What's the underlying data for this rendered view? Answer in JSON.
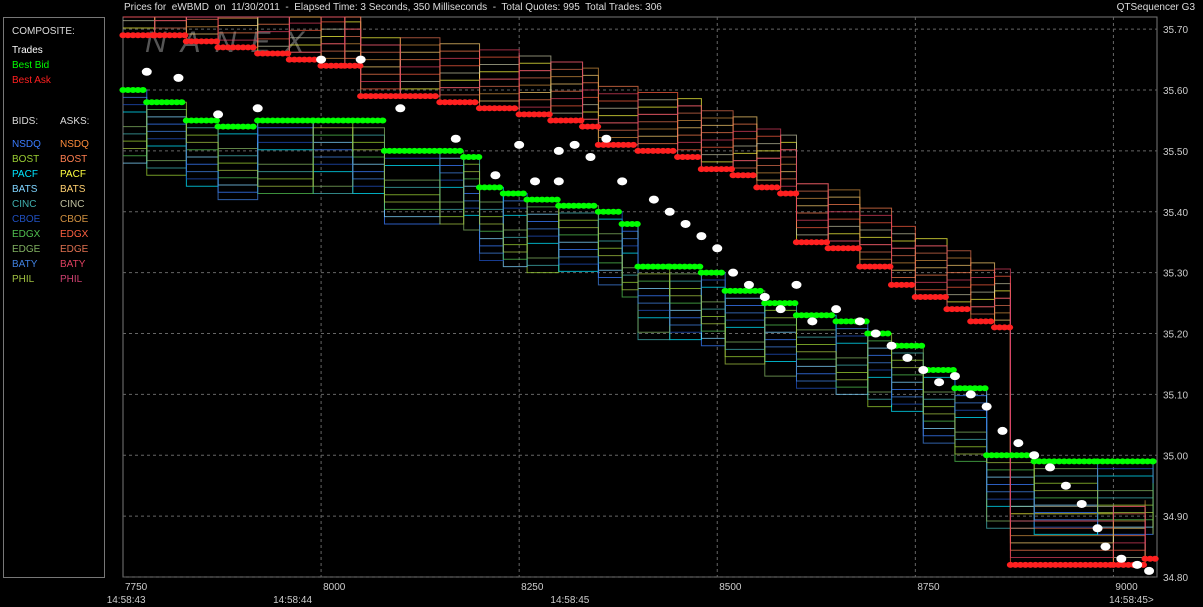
{
  "title": {
    "left": "Prices for  eWBMD  on  11/30/2011  -  Elapsed Time: 3 Seconds, 350 Milliseconds  -  Total Quotes: 995  Total Trades: 306",
    "right": "QTSequencer G3"
  },
  "watermark": "NANEX",
  "legend": {
    "composite_header": "COMPOSITE:",
    "composite": [
      {
        "label": "Trades",
        "color": "#ffffff"
      },
      {
        "label": "Best Bid",
        "color": "#00ff00"
      },
      {
        "label": "Best Ask",
        "color": "#ff2020"
      }
    ],
    "bids_header": "BIDS:",
    "asks_header": "ASKS:",
    "exchanges": [
      {
        "bid": "NSDQ",
        "bid_color": "#3a7cff",
        "ask": "NSDQ",
        "ask_color": "#ff8c3a"
      },
      {
        "bid": "BOST",
        "bid_color": "#9acd32",
        "ask": "BOST",
        "ask_color": "#ff7f50"
      },
      {
        "bid": "PACF",
        "bid_color": "#00e5ff",
        "ask": "PACF",
        "ask_color": "#ffff40"
      },
      {
        "bid": "BATS",
        "bid_color": "#7fd4ff",
        "ask": "BATS",
        "ask_color": "#ffd070"
      },
      {
        "bid": "CINC",
        "bid_color": "#40b0b0",
        "ask": "CINC",
        "ask_color": "#c0c0a0"
      },
      {
        "bid": "CBOE",
        "bid_color": "#2050c0",
        "ask": "CBOE",
        "ask_color": "#d09040"
      },
      {
        "bid": "EDGX",
        "bid_color": "#50c050",
        "ask": "EDGX",
        "ask_color": "#ff6040"
      },
      {
        "bid": "EDGE",
        "bid_color": "#80b060",
        "ask": "EDGE",
        "ask_color": "#e07050"
      },
      {
        "bid": "BATY",
        "bid_color": "#4080e0",
        "ask": "BATY",
        "ask_color": "#e04060"
      },
      {
        "bid": "PHIL",
        "bid_color": "#a0c040",
        "ask": "PHIL",
        "ask_color": "#d04070"
      }
    ]
  },
  "chart_data": {
    "type": "scatter",
    "title": "Prices for eWBMD on 11/30/2011",
    "xlim": [
      7750,
      9055
    ],
    "ylim": [
      34.8,
      35.72
    ],
    "x_ticks": [
      7750,
      8000,
      8250,
      8500,
      8750,
      9000
    ],
    "y_ticks": [
      34.8,
      34.9,
      35.0,
      35.1,
      35.2,
      35.3,
      35.4,
      35.5,
      35.6,
      35.7
    ],
    "y_tick_labels": [
      "34.80",
      "34.90",
      "35.00",
      "35.10",
      "35.20",
      "35.30",
      "35.40",
      "35.50",
      "35.60",
      "35.70"
    ],
    "time_labels": [
      {
        "x": 7790,
        "label": "14:58:43"
      },
      {
        "x": 8000,
        "label": "14:58:44"
      },
      {
        "x": 8350,
        "label": "14:58:45"
      },
      {
        "x": 9055,
        "label": "14:58:45>"
      }
    ],
    "grid": true,
    "series": [
      {
        "name": "Best Ask",
        "color": "#ff2020",
        "points": [
          [
            7750,
            35.69
          ],
          [
            7790,
            35.69
          ],
          [
            7830,
            35.68
          ],
          [
            7870,
            35.67
          ],
          [
            7920,
            35.66
          ],
          [
            7960,
            35.65
          ],
          [
            8000,
            35.64
          ],
          [
            8030,
            35.64
          ],
          [
            8050,
            35.59
          ],
          [
            8100,
            35.59
          ],
          [
            8150,
            35.58
          ],
          [
            8200,
            35.57
          ],
          [
            8250,
            35.56
          ],
          [
            8290,
            35.55
          ],
          [
            8330,
            35.54
          ],
          [
            8350,
            35.51
          ],
          [
            8400,
            35.5
          ],
          [
            8450,
            35.49
          ],
          [
            8480,
            35.47
          ],
          [
            8520,
            35.46
          ],
          [
            8550,
            35.44
          ],
          [
            8580,
            35.43
          ],
          [
            8600,
            35.35
          ],
          [
            8640,
            35.34
          ],
          [
            8680,
            35.31
          ],
          [
            8720,
            35.28
          ],
          [
            8750,
            35.26
          ],
          [
            8790,
            35.24
          ],
          [
            8820,
            35.22
          ],
          [
            8850,
            35.21
          ],
          [
            8870,
            34.82
          ],
          [
            9000,
            34.82
          ],
          [
            9040,
            34.83
          ]
        ]
      },
      {
        "name": "Best Bid",
        "color": "#00ff00",
        "points": [
          [
            7750,
            35.6
          ],
          [
            7780,
            35.58
          ],
          [
            7830,
            35.55
          ],
          [
            7870,
            35.54
          ],
          [
            7920,
            35.55
          ],
          [
            7990,
            35.55
          ],
          [
            8040,
            35.55
          ],
          [
            8080,
            35.5
          ],
          [
            8150,
            35.5
          ],
          [
            8180,
            35.49
          ],
          [
            8200,
            35.44
          ],
          [
            8230,
            35.43
          ],
          [
            8260,
            35.42
          ],
          [
            8300,
            35.41
          ],
          [
            8350,
            35.4
          ],
          [
            8380,
            35.38
          ],
          [
            8400,
            35.31
          ],
          [
            8440,
            35.31
          ],
          [
            8480,
            35.3
          ],
          [
            8510,
            35.27
          ],
          [
            8560,
            35.25
          ],
          [
            8600,
            35.23
          ],
          [
            8650,
            35.22
          ],
          [
            8690,
            35.2
          ],
          [
            8720,
            35.18
          ],
          [
            8760,
            35.14
          ],
          [
            8800,
            35.11
          ],
          [
            8840,
            35.0
          ],
          [
            8900,
            34.99
          ],
          [
            8980,
            34.99
          ],
          [
            9050,
            34.99
          ]
        ]
      },
      {
        "name": "Trades",
        "color": "#ffffff",
        "points": [
          [
            7780,
            35.63
          ],
          [
            7820,
            35.62
          ],
          [
            7870,
            35.56
          ],
          [
            7920,
            35.57
          ],
          [
            8000,
            35.65
          ],
          [
            8050,
            35.65
          ],
          [
            8100,
            35.57
          ],
          [
            8170,
            35.52
          ],
          [
            8250,
            35.51
          ],
          [
            8300,
            35.5
          ],
          [
            8320,
            35.51
          ],
          [
            8340,
            35.49
          ],
          [
            8360,
            35.52
          ],
          [
            8220,
            35.46
          ],
          [
            8270,
            35.45
          ],
          [
            8300,
            35.45
          ],
          [
            8380,
            35.45
          ],
          [
            8420,
            35.42
          ],
          [
            8440,
            35.4
          ],
          [
            8460,
            35.38
          ],
          [
            8480,
            35.36
          ],
          [
            8500,
            35.34
          ],
          [
            8520,
            35.3
          ],
          [
            8540,
            35.28
          ],
          [
            8560,
            35.26
          ],
          [
            8580,
            35.24
          ],
          [
            8600,
            35.28
          ],
          [
            8620,
            35.22
          ],
          [
            8650,
            35.24
          ],
          [
            8680,
            35.22
          ],
          [
            8700,
            35.2
          ],
          [
            8720,
            35.18
          ],
          [
            8740,
            35.16
          ],
          [
            8760,
            35.14
          ],
          [
            8780,
            35.12
          ],
          [
            8800,
            35.13
          ],
          [
            8820,
            35.1
          ],
          [
            8840,
            35.08
          ],
          [
            8860,
            35.04
          ],
          [
            8880,
            35.02
          ],
          [
            8900,
            35.0
          ],
          [
            8920,
            34.98
          ],
          [
            8940,
            34.95
          ],
          [
            8960,
            34.92
          ],
          [
            8980,
            34.88
          ],
          [
            8990,
            34.85
          ],
          [
            9010,
            34.83
          ],
          [
            9030,
            34.82
          ],
          [
            9045,
            34.81
          ]
        ]
      }
    ]
  }
}
